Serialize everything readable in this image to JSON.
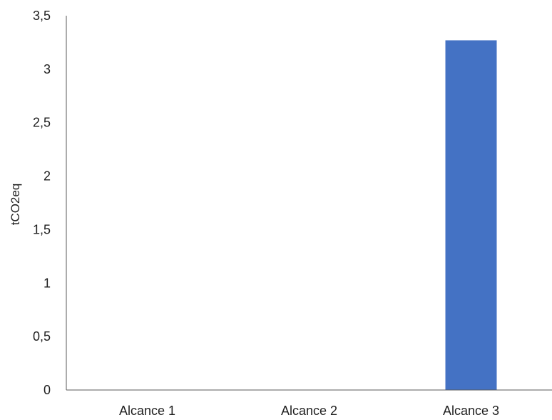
{
  "chart_data": {
    "type": "bar",
    "categories": [
      "Alcance 1",
      "Alcance 2",
      "Alcance 3"
    ],
    "values": [
      0,
      0,
      3.27
    ],
    "title": "",
    "xlabel": "",
    "ylabel": "tCO2eq",
    "ylim": [
      0,
      3.5
    ],
    "yticks": [
      "0",
      "0,5",
      "1",
      "1,5",
      "2",
      "2,5",
      "3",
      "3,5"
    ],
    "ytick_values": [
      0,
      0.5,
      1,
      1.5,
      2,
      2.5,
      3,
      3.5
    ],
    "grid": false,
    "legend": "none",
    "bar_color": "#4472C4",
    "axis_color": "#595959"
  }
}
